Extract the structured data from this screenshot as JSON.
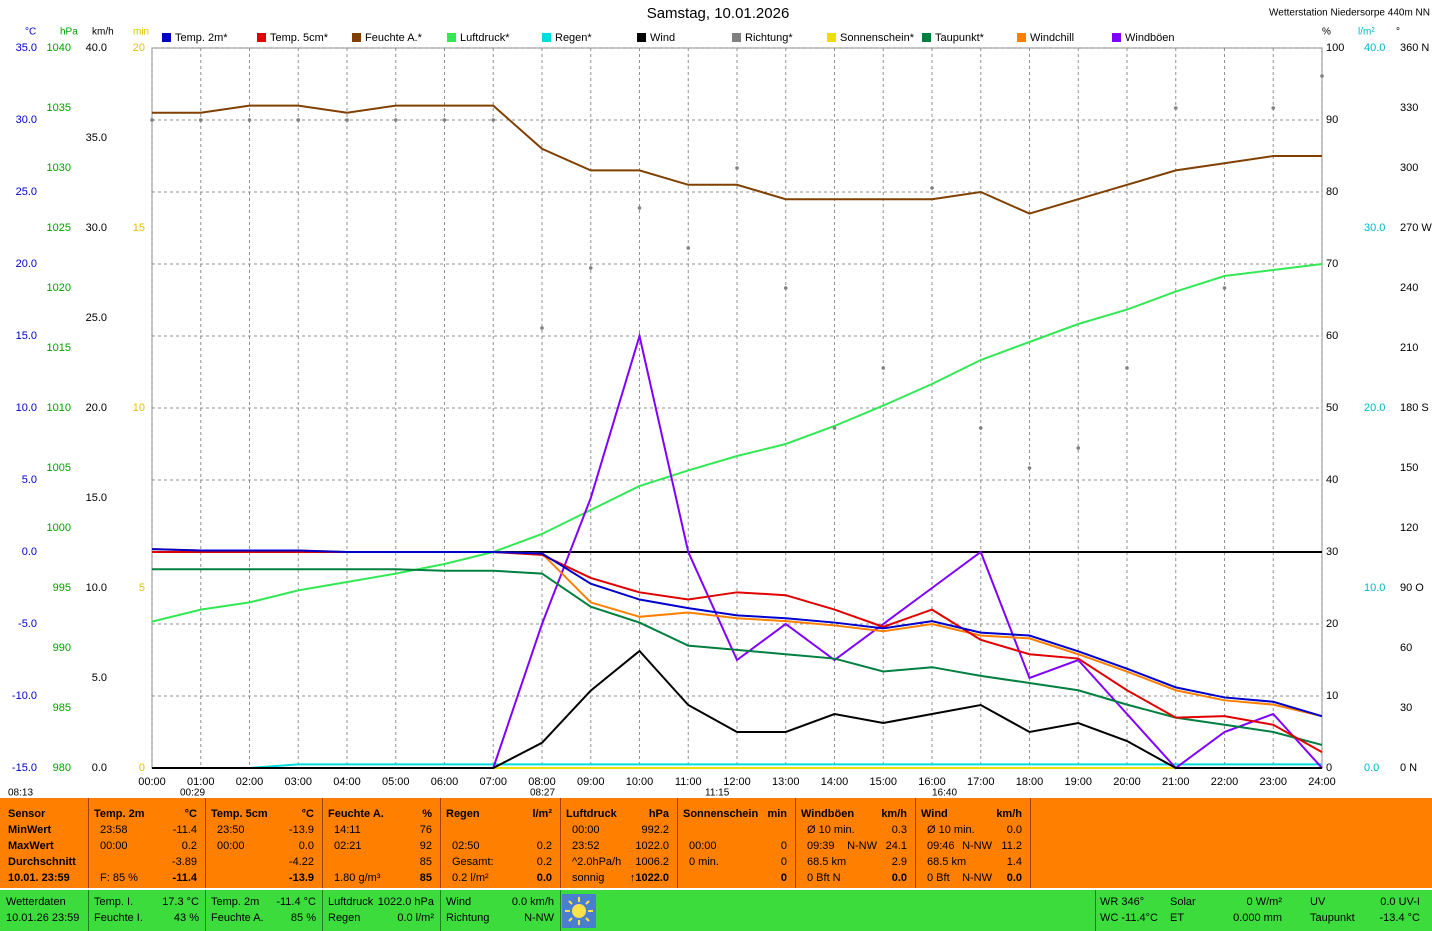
{
  "chart_data": {
    "type": "line",
    "title": "Samstag, 10.01.2026",
    "station": "Wetterstation Niedersorpe 440m NN",
    "x": [
      0,
      1,
      2,
      3,
      4,
      5,
      6,
      7,
      8,
      9,
      10,
      11,
      12,
      13,
      14,
      15,
      16,
      17,
      18,
      19,
      20,
      21,
      22,
      23,
      24
    ],
    "xlim": [
      0,
      24
    ],
    "xticks": [
      {
        "value": 0,
        "label": "00:00"
      },
      {
        "value": 1,
        "label": "01:00"
      },
      {
        "value": 2,
        "label": "02:00"
      },
      {
        "value": 3,
        "label": "03:00"
      },
      {
        "value": 4,
        "label": "04:00"
      },
      {
        "value": 5,
        "label": "05:00"
      },
      {
        "value": 6,
        "label": "06:00"
      },
      {
        "value": 7,
        "label": "07:00"
      },
      {
        "value": 8,
        "label": "08:00"
      },
      {
        "value": 9,
        "label": "09:00"
      },
      {
        "value": 10,
        "label": "10:00"
      },
      {
        "value": 11,
        "label": "11:00"
      },
      {
        "value": 12,
        "label": "12:00"
      },
      {
        "value": 13,
        "label": "13:00"
      },
      {
        "value": 14,
        "label": "14:00"
      },
      {
        "value": 15,
        "label": "15:00"
      },
      {
        "value": 16,
        "label": "16:00"
      },
      {
        "value": 17,
        "label": "17:00"
      },
      {
        "value": 18,
        "label": "18:00"
      },
      {
        "value": 19,
        "label": "19:00"
      },
      {
        "value": 20,
        "label": "20:00"
      },
      {
        "value": 21,
        "label": "21:00"
      },
      {
        "value": 22,
        "label": "22:00"
      },
      {
        "value": 23,
        "label": "23:00"
      },
      {
        "value": 24,
        "label": "24:00"
      }
    ],
    "grid": true,
    "axes": [
      {
        "label": "°C",
        "color": "#0000cc",
        "lim": [
          -15,
          35
        ],
        "ticks": [
          {
            "value": -15,
            "label": "-15.0"
          },
          {
            "value": -10,
            "label": "-10.0"
          },
          {
            "value": -5,
            "label": "-5.0"
          },
          {
            "value": 0,
            "label": "0.0"
          },
          {
            "value": 5,
            "label": "5.0"
          },
          {
            "value": 10,
            "label": "10.0"
          },
          {
            "value": 15,
            "label": "15.0"
          },
          {
            "value": 20,
            "label": "20.0"
          },
          {
            "value": 25,
            "label": "25.0"
          },
          {
            "value": 30,
            "label": "30.0"
          },
          {
            "value": 35,
            "label": "35.0"
          }
        ]
      },
      {
        "label": "hPa",
        "color": "#00a000",
        "lim": [
          980,
          1040
        ],
        "ticks": [
          980,
          985,
          990,
          995,
          1000,
          1005,
          1010,
          1015,
          1020,
          1025,
          1030,
          1035,
          1040
        ]
      },
      {
        "label": "km/h",
        "color": "#000000",
        "lim": [
          0,
          40
        ],
        "ticks": [
          {
            "value": 0,
            "label": "0.0"
          },
          {
            "value": 5,
            "label": "5.0"
          },
          {
            "value": 10,
            "label": "10.0"
          },
          {
            "value": 15,
            "label": "15.0"
          },
          {
            "value": 20,
            "label": "20.0"
          },
          {
            "value": 25,
            "label": "25.0"
          },
          {
            "value": 30,
            "label": "30.0"
          },
          {
            "value": 35,
            "label": "35.0"
          },
          {
            "value": 40,
            "label": "40.0"
          }
        ]
      },
      {
        "label": "min",
        "color": "#e0c000",
        "lim": [
          0,
          20
        ],
        "ticks": [
          0,
          5,
          10,
          15,
          20
        ]
      },
      {
        "label": "%",
        "color": "#000000",
        "lim": [
          0,
          100
        ],
        "ticks": [
          0,
          10,
          20,
          30,
          40,
          50,
          60,
          70,
          80,
          90,
          100
        ]
      },
      {
        "label": "l/m²",
        "color": "#00b8c8",
        "lim": [
          0,
          40
        ],
        "ticks": [
          {
            "value": 0,
            "label": "0.0"
          },
          {
            "value": 10,
            "label": "10.0"
          },
          {
            "value": 20,
            "label": "20.0"
          },
          {
            "value": 30,
            "label": "30.0"
          },
          {
            "value": 40,
            "label": "40.0"
          }
        ]
      },
      {
        "label": "°",
        "color": "#000000",
        "lim": [
          0,
          360
        ],
        "ticks": [
          {
            "value": 0,
            "label": "0 N"
          },
          30,
          60,
          {
            "value": 90,
            "label": "90 O"
          },
          120,
          150,
          {
            "value": 180,
            "label": "180 S"
          },
          210,
          240,
          {
            "value": 270,
            "label": "270 W"
          },
          300,
          330,
          {
            "value": 360,
            "label": "360 N"
          }
        ]
      }
    ],
    "series": [
      {
        "name": "Temp. 2m*",
        "color": "#0000cc",
        "axis": "°C",
        "values": [
          0.2,
          0.1,
          0.1,
          0.1,
          0,
          0,
          0,
          0,
          -0.1,
          -2.2,
          -3.3,
          -3.9,
          -4.4,
          -4.6,
          -4.9,
          -5.3,
          -4.8,
          -5.6,
          -5.8,
          -6.9,
          -8.1,
          -9.4,
          -10.1,
          -10.4,
          -11.4
        ]
      },
      {
        "name": "Temp. 5cm*",
        "color": "#e00000",
        "axis": "°C",
        "values": [
          0,
          0,
          0,
          0,
          0,
          0,
          0,
          0,
          -0.2,
          -1.8,
          -2.8,
          -3.3,
          -2.8,
          -3.0,
          -4.0,
          -5.2,
          -4.0,
          -6.1,
          -7.1,
          -7.4,
          -9.6,
          -11.5,
          -11.4,
          -12.0,
          -13.9
        ]
      },
      {
        "name": "Feuchte A.*",
        "color": "#804000",
        "axis": "%",
        "values": [
          91,
          91,
          92,
          92,
          91,
          92,
          92,
          92,
          86,
          83,
          83,
          81,
          81,
          79,
          79,
          79,
          79,
          80,
          77,
          79,
          81,
          83,
          84,
          85,
          85
        ]
      },
      {
        "name": "Luftdruck*",
        "color": "#33e855",
        "axis": "hPa",
        "values": [
          992.2,
          993.2,
          993.8,
          994.8,
          995.5,
          996.2,
          997,
          998,
          999.5,
          1001.5,
          1003.5,
          1004.8,
          1006,
          1007,
          1008.5,
          1010.2,
          1012,
          1014,
          1015.5,
          1017,
          1018.2,
          1019.7,
          1021,
          1021.5,
          1022.0
        ]
      },
      {
        "name": "Regen*",
        "color": "#00dddd",
        "axis": "l/m²",
        "values": [
          0,
          0,
          0,
          0.2,
          0.2,
          0.2,
          0.2,
          0.2,
          0.2,
          0.2,
          0.2,
          0.2,
          0.2,
          0.2,
          0.2,
          0.2,
          0.2,
          0.2,
          0.2,
          0.2,
          0.2,
          0.2,
          0.2,
          0.2,
          0.2
        ]
      },
      {
        "name": "Wind",
        "color": "#000000",
        "axis": "km/h",
        "values": [
          0,
          0,
          0,
          0,
          0,
          0,
          0,
          0,
          1.4,
          4.3,
          6.5,
          3.5,
          2,
          2,
          3,
          2.5,
          3,
          3.5,
          2,
          2.5,
          1.5,
          0,
          0,
          0,
          0
        ]
      },
      {
        "name": "Richtung*",
        "color": "#808080",
        "axis": "°",
        "style": "dots",
        "values": [
          324,
          324,
          324,
          324,
          324,
          324,
          324,
          324,
          220,
          250,
          280,
          260,
          300,
          240,
          170,
          200,
          290,
          170,
          150,
          160,
          200,
          330,
          240,
          330,
          346
        ]
      },
      {
        "name": "Sonnenschein*",
        "color": "#eedd00",
        "axis": "min",
        "values": [
          0,
          0,
          0,
          0,
          0,
          0,
          0,
          0,
          0,
          0,
          0,
          0,
          0,
          0,
          0,
          0,
          0,
          0,
          0,
          0,
          0,
          0,
          0,
          0,
          0
        ]
      },
      {
        "name": "Taupunkt*",
        "color": "#008040",
        "axis": "°C",
        "values": [
          -1.2,
          -1.2,
          -1.2,
          -1.2,
          -1.2,
          -1.2,
          -1.3,
          -1.3,
          -1.5,
          -3.8,
          -4.9,
          -6.5,
          -6.8,
          -7.1,
          -7.4,
          -8.3,
          -8.0,
          -8.6,
          -9.1,
          -9.6,
          -10.6,
          -11.5,
          -12.0,
          -12.5,
          -13.4
        ]
      },
      {
        "name": "Windchill",
        "color": "#ff8000",
        "axis": "°C",
        "values": [
          0.2,
          0.1,
          0.1,
          0.1,
          0,
          0,
          0,
          0,
          -0.1,
          -3.5,
          -4.5,
          -4.2,
          -4.6,
          -4.8,
          -5.1,
          -5.5,
          -5.0,
          -5.8,
          -6.0,
          -7.1,
          -8.3,
          -9.6,
          -10.3,
          -10.6,
          -11.4
        ]
      },
      {
        "name": "Windböen",
        "color": "#8000ff",
        "axis": "km/h",
        "values": [
          0,
          0,
          0,
          0,
          0,
          0,
          0,
          0,
          8,
          15,
          24,
          12,
          6,
          8,
          6,
          8,
          10,
          12,
          5,
          6,
          3,
          0,
          2,
          3,
          0
        ]
      }
    ],
    "annotations": [
      "08:13",
      "00:29",
      "08:27",
      "11:15",
      "16:40"
    ]
  },
  "stats": {
    "labels": [
      "Sensor",
      "MinWert",
      "MaxWert",
      "Durchschnitt",
      "10.01. 23:59"
    ],
    "panels": [
      {
        "title": "Temp. 2m",
        "unit": "°C",
        "rows": [
          [
            "23:58",
            "-11.4"
          ],
          [
            "00:00",
            "0.2"
          ],
          [
            null,
            "-3.89"
          ],
          [
            "F: 85 %",
            "-11.4"
          ]
        ]
      },
      {
        "title": "Temp. 5cm",
        "unit": "°C",
        "rows": [
          [
            "23:50",
            "-13.9"
          ],
          [
            "00:00",
            "0.0"
          ],
          [
            null,
            "-4.22"
          ],
          [
            null,
            "-13.9"
          ]
        ]
      },
      {
        "title": "Feuchte A.",
        "unit": "%",
        "rows": [
          [
            "14:11",
            "76"
          ],
          [
            "02:21",
            "92"
          ],
          [
            null,
            "85"
          ],
          [
            "1.80 g/m³",
            "85"
          ]
        ]
      },
      {
        "title": "Regen",
        "unit": "l/m²",
        "rows": [
          [
            null,
            null
          ],
          [
            "02:50",
            "0.2"
          ],
          [
            "Gesamt:",
            "0.2"
          ],
          [
            "0.2 l/m²",
            "0.0"
          ]
        ]
      },
      {
        "title": "Luftdruck",
        "unit": "hPa",
        "rows": [
          [
            "00:00",
            "992.2"
          ],
          [
            "23:52",
            "1022.0"
          ],
          [
            "^2.0hPa/h",
            "1006.2"
          ],
          [
            "sonnig",
            "↑1022.0"
          ]
        ]
      },
      {
        "title": "Sonnenschein",
        "unit": "min",
        "rows": [
          [
            null,
            null
          ],
          [
            "00:00",
            "0"
          ],
          [
            "0 min.",
            "0"
          ],
          [
            null,
            "0"
          ]
        ]
      },
      {
        "title": "Windböen",
        "unit": "km/h",
        "rows": [
          [
            "Ø 10 min.",
            "0.3"
          ],
          [
            "09:39",
            "N-NW",
            "24.1"
          ],
          [
            "68.5 km",
            "2.9"
          ],
          [
            "0 Bft N",
            "0.0"
          ]
        ]
      },
      {
        "title": "Wind",
        "unit": "km/h",
        "rows": [
          [
            "Ø 10 min.",
            "0.0"
          ],
          [
            "09:46",
            "N-NW",
            "11.2"
          ],
          [
            "68.5 km",
            "1.4"
          ],
          [
            "0 Bft",
            "N-NW",
            "0.0"
          ]
        ]
      }
    ]
  },
  "footer": {
    "groups": [
      {
        "rows": [
          [
            "Wetterdaten"
          ],
          [
            "10.01.26 23:59"
          ]
        ]
      },
      {
        "rows": [
          [
            "Temp. I.",
            "17.3 °C"
          ],
          [
            "Feuchte I.",
            "43 %"
          ]
        ]
      },
      {
        "rows": [
          [
            "Temp. 2m",
            "-11.4 °C"
          ],
          [
            "Feuchte A.",
            "85 %"
          ]
        ]
      },
      {
        "rows": [
          [
            "Luftdruck",
            "1022.0 hPa"
          ],
          [
            "Regen",
            "0.0 l/m²"
          ]
        ]
      },
      {
        "rows": [
          [
            "Wind",
            "0.0 km/h"
          ],
          [
            "Richtung",
            "N-NW"
          ]
        ]
      },
      {
        "rows": [
          [
            "WR 346°",
            "Solar",
            "0 W/m²",
            "UV",
            "0.0 UV-I"
          ],
          [
            "WC -11.4°C",
            "ET",
            "0.000 mm",
            "Taupunkt",
            "-13.4 °C"
          ]
        ]
      }
    ]
  }
}
